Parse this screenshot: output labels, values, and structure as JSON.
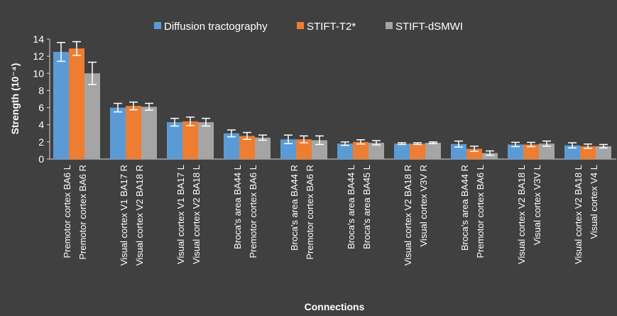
{
  "chart_data": {
    "type": "bar",
    "title": "",
    "xlabel": "Connections",
    "ylabel": "Strength (10⁻⁴)",
    "ylim": [
      0,
      14
    ],
    "yticks": [
      0,
      2,
      4,
      6,
      8,
      10,
      12,
      14
    ],
    "grid": false,
    "legend_position": "top",
    "categories": [
      [
        "Premotor cortex BA6 L",
        "Premotor cortex BA6 R"
      ],
      [
        "Visual cortex V1 BA17 R",
        "Visual cortex V2 BA18 R"
      ],
      [
        "Visual cortex V1 BA17 L",
        "Visual cortex V2 BA18 L"
      ],
      [
        "Broca's area BA44 L",
        "Premotor cortex BA6 L"
      ],
      [
        "Broca's area BA44 R",
        "Premotor cortex BA6 R"
      ],
      [
        "Broca's area BA44 L",
        "Broca's area BA45 L"
      ],
      [
        "Visual cortex V2 BA18 R",
        "Visual cortex V3V R"
      ],
      [
        "Broca's area BA44 R",
        "Premotor cortex BA6 L"
      ],
      [
        "Visual cortex V2 BA18 L",
        "Visual cortex V3V L"
      ],
      [
        "Visual cortex V2 BA18 L",
        "Visual cortex V4 L"
      ]
    ],
    "series": [
      {
        "name": "Diffusion tractography",
        "color": "#5b9bd5",
        "values": [
          12.5,
          6.0,
          4.3,
          3.0,
          2.3,
          1.8,
          1.8,
          1.75,
          1.7,
          1.6
        ],
        "errors": [
          1.1,
          0.5,
          0.45,
          0.4,
          0.5,
          0.2,
          0.1,
          0.35,
          0.25,
          0.3
        ]
      },
      {
        "name": "STIFT-T2*",
        "color": "#ed7d31",
        "values": [
          12.9,
          6.2,
          4.4,
          2.7,
          2.3,
          2.0,
          1.8,
          1.2,
          1.7,
          1.5
        ],
        "errors": [
          0.8,
          0.45,
          0.5,
          0.4,
          0.4,
          0.25,
          0.1,
          0.3,
          0.25,
          0.25
        ]
      },
      {
        "name": "STIFT-dSMWI",
        "color": "#a5a5a5",
        "values": [
          10.0,
          6.1,
          4.3,
          2.5,
          2.2,
          1.9,
          1.9,
          0.7,
          1.8,
          1.5
        ],
        "errors": [
          1.3,
          0.4,
          0.45,
          0.3,
          0.5,
          0.25,
          0.1,
          0.25,
          0.3,
          0.2
        ]
      }
    ]
  }
}
